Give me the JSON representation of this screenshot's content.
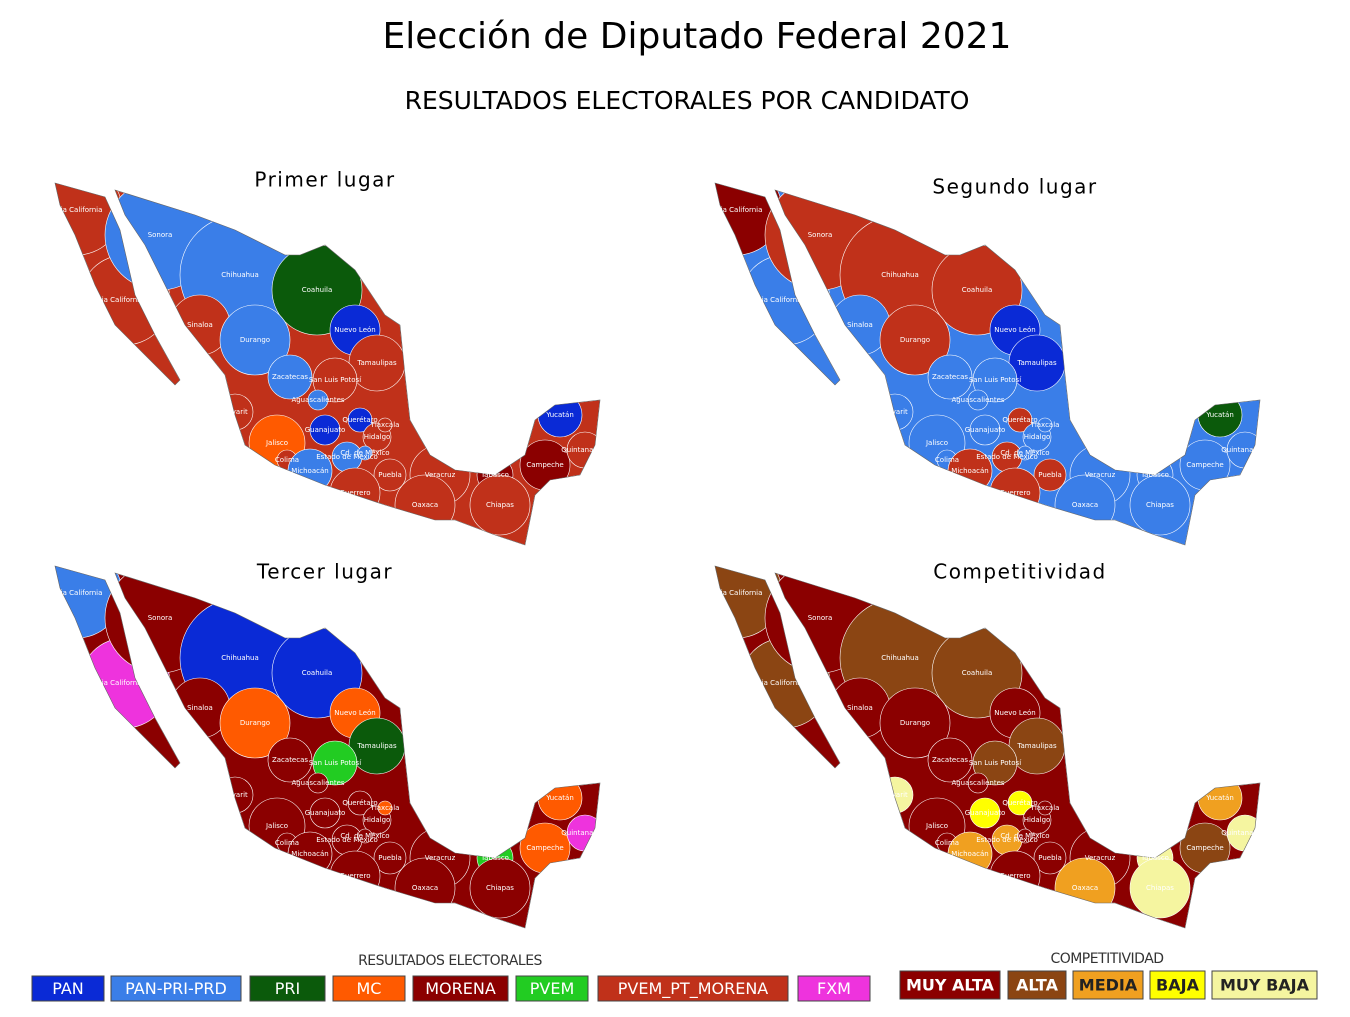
{
  "title": "Elección de Diputado Federal 2021",
  "subtitle": "RESULTADOS ELECTORALES POR CANDIDATO",
  "states": [
    "Baja California",
    "Baja California Sur",
    "Sonora",
    "Chihuahua",
    "Coahuila",
    "Nuevo León",
    "Tamaulipas",
    "Sinaloa",
    "Durango",
    "Zacatecas",
    "San Luis Potosí",
    "Aguascalientes",
    "Nayarit",
    "Jalisco",
    "Colima",
    "Michoacán",
    "Guanajuato",
    "Querétaro",
    "Hidalgo",
    "Estado de México",
    "Cd. de México",
    "Tlaxcala",
    "Puebla",
    "Veracruz",
    "Morelos",
    "Guerrero",
    "Oaxaca",
    "Tabasco",
    "Chiapas",
    "Campeche",
    "Yucatán",
    "Quintana Roo"
  ],
  "maps": [
    {
      "title": "Primer lugar",
      "base": "#c0311a",
      "colors": [
        "#c0311a",
        "#c0311a",
        "#3a7ee8",
        "#3a7ee8",
        "#0b5a0b",
        "#0a2ad6",
        "#c0311a",
        "#c0311a",
        "#3a7ee8",
        "#3a7ee8",
        "#c0311a",
        "#3a7ee8",
        "#c0311a",
        "#ff5a00",
        "#c0311a",
        "#3a7ee8",
        "#0a2ad6",
        "#0a2ad6",
        "#c0311a",
        "#3a7ee8",
        "#3a7ee8",
        "#c0311a",
        "#c0311a",
        "#c0311a",
        "#3a7ee8",
        "#c0311a",
        "#c0311a",
        "#8b0000",
        "#c0311a",
        "#8b0000",
        "#0a2ad6",
        "#c0311a"
      ]
    },
    {
      "title": "Segundo lugar",
      "base": "#3a7ee8",
      "colors": [
        "#8b0000",
        "#3a7ee8",
        "#c0311a",
        "#c0311a",
        "#c0311a",
        "#0a2ad6",
        "#0a2ad6",
        "#3a7ee8",
        "#c0311a",
        "#3a7ee8",
        "#3a7ee8",
        "#3a7ee8",
        "#3a7ee8",
        "#3a7ee8",
        "#3a7ee8",
        "#c0311a",
        "#3a7ee8",
        "#c0311a",
        "#3a7ee8",
        "#c0311a",
        "#3a7ee8",
        "#3a7ee8",
        "#c0311a",
        "#3a7ee8",
        "#3a7ee8",
        "#c0311a",
        "#3a7ee8",
        "#3a7ee8",
        "#3a7ee8",
        "#3a7ee8",
        "#0b5a0b",
        "#3a7ee8"
      ]
    },
    {
      "title": "Tercer lugar",
      "base": "#8b0000",
      "colors": [
        "#3a7ee8",
        "#ee33dd",
        "#8b0000",
        "#0a2ad6",
        "#0a2ad6",
        "#ff5a00",
        "#0b5a0b",
        "#8b0000",
        "#ff5a00",
        "#8b0000",
        "#22cc22",
        "#8b0000",
        "#8b0000",
        "#8b0000",
        "#8b0000",
        "#8b0000",
        "#8b0000",
        "#8b0000",
        "#8b0000",
        "#8b0000",
        "#8b0000",
        "#ff5a00",
        "#8b0000",
        "#8b0000",
        "#8b0000",
        "#8b0000",
        "#8b0000",
        "#22cc22",
        "#8b0000",
        "#ff5a00",
        "#ff5a00",
        "#ee33dd"
      ]
    },
    {
      "title": "Competitividad",
      "base": "#8b0000",
      "colors": [
        "#8b4513",
        "#8b4513",
        "#8b0000",
        "#8b4513",
        "#8b4513",
        "#8b0000",
        "#8b4513",
        "#8b0000",
        "#8b0000",
        "#8b0000",
        "#8b4513",
        "#8b0000",
        "#f5f5a0",
        "#8b0000",
        "#8b0000",
        "#f0a020",
        "#ffff00",
        "#ffff00",
        "#8b0000",
        "#f0a020",
        "#8b0000",
        "#8b0000",
        "#8b0000",
        "#8b0000",
        "#8b0000",
        "#8b0000",
        "#f0a020",
        "#f5f5a0",
        "#f5f5a0",
        "#8b4513",
        "#f0a020",
        "#f5f5a0"
      ]
    }
  ],
  "legends": [
    {
      "title": "RESULTADOS ELECTORALES",
      "items": [
        {
          "label": "PAN",
          "color": "#0a2ad6"
        },
        {
          "label": "PAN-PRI-PRD",
          "color": "#3a7ee8"
        },
        {
          "label": "PRI",
          "color": "#0b5a0b"
        },
        {
          "label": "MC",
          "color": "#ff5a00"
        },
        {
          "label": "MORENA",
          "color": "#8b0000"
        },
        {
          "label": "PVEM",
          "color": "#22cc22"
        },
        {
          "label": "PVEM_PT_MORENA",
          "color": "#c0311a"
        },
        {
          "label": "FXM",
          "color": "#ee33dd"
        }
      ]
    },
    {
      "title": "COMPETITIVIDAD",
      "items": [
        {
          "label": "MUY ALTA",
          "color": "#8b0000"
        },
        {
          "label": "ALTA",
          "color": "#8b4513"
        },
        {
          "label": "MEDIA",
          "color": "#f0a020"
        },
        {
          "label": "BAJA",
          "color": "#ffff00"
        },
        {
          "label": "MUY BAJA",
          "color": "#f5f5a0"
        }
      ]
    }
  ]
}
